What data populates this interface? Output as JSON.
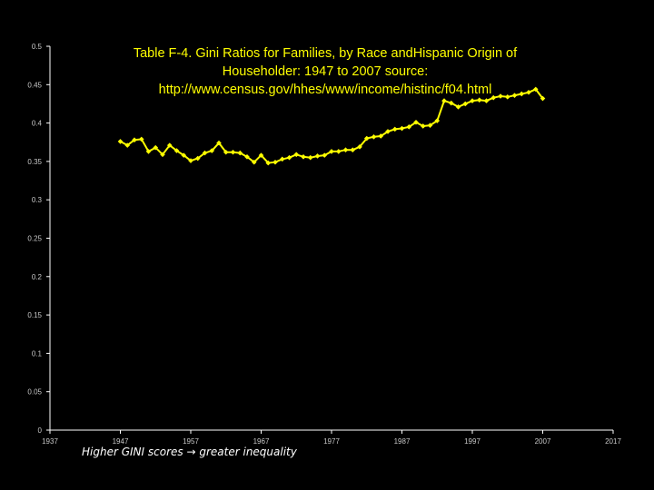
{
  "chart_data": {
    "type": "line",
    "title": [
      "Table F-4.  Gini Ratios for Families, by Race andHispanic Origin of",
      "Householder:  1947 to 2007     source:",
      "http://www.census.gov/hhes/www/income/histinc/f04.html"
    ],
    "xlabel": "",
    "ylabel": "",
    "xlim": [
      1937,
      2017
    ],
    "ylim": [
      0,
      0.5
    ],
    "x_ticks": [
      "1937",
      "1947",
      "1957",
      "1967",
      "1977",
      "1987",
      "1997",
      "2007",
      "2017"
    ],
    "y_ticks": [
      "0",
      "0.05",
      "0.1",
      "0.15",
      "0.2",
      "0.25",
      "0.3",
      "0.35",
      "0.4",
      "0.45",
      "0.5"
    ],
    "legend": "none",
    "grid": false,
    "colors": {
      "background": "#000000",
      "series": "#ffff00",
      "title": "#ffff00",
      "axis": "#ffffff",
      "ticks": "#c8c8c8"
    },
    "series": [
      {
        "x": [
          1947,
          1948,
          1949,
          1950,
          1951,
          1952,
          1953,
          1954,
          1955,
          1956,
          1957,
          1958,
          1959,
          1960,
          1961,
          1962,
          1963,
          1964,
          1965,
          1966,
          1967,
          1968,
          1969,
          1970,
          1971,
          1972,
          1973,
          1974,
          1975,
          1976,
          1977,
          1978,
          1979,
          1980,
          1981,
          1982,
          1983,
          1984,
          1985,
          1986,
          1987,
          1988,
          1989,
          1990,
          1991,
          1992,
          1993,
          1994,
          1995,
          1996,
          1997,
          1998,
          1999,
          2000,
          2001,
          2002,
          2003,
          2004,
          2005,
          2006,
          2007
        ],
        "values": [
          0.376,
          0.371,
          0.378,
          0.379,
          0.363,
          0.368,
          0.359,
          0.371,
          0.364,
          0.358,
          0.351,
          0.354,
          0.361,
          0.364,
          0.374,
          0.362,
          0.362,
          0.361,
          0.356,
          0.349,
          0.358,
          0.348,
          0.349,
          0.353,
          0.355,
          0.359,
          0.356,
          0.355,
          0.357,
          0.358,
          0.363,
          0.363,
          0.365,
          0.365,
          0.369,
          0.38,
          0.382,
          0.383,
          0.389,
          0.392,
          0.393,
          0.395,
          0.401,
          0.396,
          0.397,
          0.403,
          0.429,
          0.426,
          0.421,
          0.425,
          0.429,
          0.43,
          0.429,
          0.433,
          0.435,
          0.434,
          0.436,
          0.438,
          0.44,
          0.444,
          0.432
        ]
      }
    ]
  },
  "note": {
    "prefix": "Higher GINI scores",
    "arrow": "→",
    "suffix": "greater inequality"
  }
}
